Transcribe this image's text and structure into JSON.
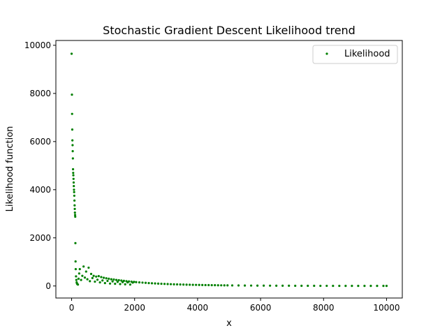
{
  "chart_data": {
    "type": "scatter",
    "title": "Stochastic Gradient Descent Likelihood trend",
    "xlabel": "x",
    "ylabel": "Likelihood function",
    "xlim": [
      -500,
      10500
    ],
    "ylim": [
      -500,
      10200
    ],
    "x_ticks": [
      0,
      2000,
      4000,
      6000,
      8000,
      10000
    ],
    "y_ticks": [
      0,
      2000,
      4000,
      6000,
      8000,
      10000
    ],
    "x_tick_labels": [
      "0",
      "2000",
      "4000",
      "6000",
      "8000",
      "10000"
    ],
    "y_tick_labels": [
      "0",
      "2000",
      "4000",
      "6000",
      "8000",
      "10000"
    ],
    "grid": false,
    "legend": {
      "position": "top-right",
      "entries": [
        "Likelihood"
      ]
    },
    "series": [
      {
        "name": "Likelihood",
        "color": "#008000",
        "marker": "dot",
        "points": [
          [
            0,
            9650
          ],
          [
            10,
            7950
          ],
          [
            15,
            7150
          ],
          [
            20,
            6500
          ],
          [
            25,
            6050
          ],
          [
            30,
            5850
          ],
          [
            35,
            5600
          ],
          [
            40,
            5300
          ],
          [
            45,
            4850
          ],
          [
            50,
            4700
          ],
          [
            55,
            4600
          ],
          [
            60,
            4450
          ],
          [
            65,
            4300
          ],
          [
            70,
            4150
          ],
          [
            75,
            4000
          ],
          [
            80,
            3900
          ],
          [
            85,
            3750
          ],
          [
            90,
            3550
          ],
          [
            95,
            3350
          ],
          [
            100,
            3200
          ],
          [
            105,
            3050
          ],
          [
            110,
            2950
          ],
          [
            115,
            2880
          ],
          [
            120,
            1780
          ],
          [
            125,
            1020
          ],
          [
            130,
            700
          ],
          [
            140,
            400
          ],
          [
            150,
            250
          ],
          [
            160,
            150
          ],
          [
            170,
            100
          ],
          [
            180,
            80
          ],
          [
            200,
            60
          ],
          [
            220,
            300
          ],
          [
            240,
            520
          ],
          [
            260,
            700
          ],
          [
            300,
            250
          ],
          [
            340,
            420
          ],
          [
            380,
            810
          ],
          [
            420,
            350
          ],
          [
            460,
            600
          ],
          [
            500,
            280
          ],
          [
            540,
            760
          ],
          [
            580,
            200
          ],
          [
            620,
            500
          ],
          [
            660,
            330
          ],
          [
            700,
            420
          ],
          [
            740,
            180
          ],
          [
            780,
            390
          ],
          [
            820,
            260
          ],
          [
            860,
            410
          ],
          [
            900,
            150
          ],
          [
            940,
            370
          ],
          [
            980,
            230
          ],
          [
            1020,
            340
          ],
          [
            1060,
            120
          ],
          [
            1100,
            320
          ],
          [
            1140,
            210
          ],
          [
            1180,
            300
          ],
          [
            1220,
            100
          ],
          [
            1260,
            280
          ],
          [
            1300,
            190
          ],
          [
            1340,
            270
          ],
          [
            1380,
            90
          ],
          [
            1420,
            250
          ],
          [
            1460,
            170
          ],
          [
            1500,
            240
          ],
          [
            1540,
            80
          ],
          [
            1580,
            225
          ],
          [
            1620,
            160
          ],
          [
            1660,
            215
          ],
          [
            1700,
            70
          ],
          [
            1740,
            200
          ],
          [
            1780,
            150
          ],
          [
            1820,
            190
          ],
          [
            1860,
            60
          ],
          [
            1900,
            180
          ],
          [
            1940,
            140
          ],
          [
            1980,
            170
          ],
          [
            2050,
            160
          ],
          [
            2150,
            150
          ],
          [
            2250,
            140
          ],
          [
            2350,
            130
          ],
          [
            2450,
            120
          ],
          [
            2550,
            112
          ],
          [
            2650,
            105
          ],
          [
            2750,
            98
          ],
          [
            2850,
            92
          ],
          [
            2950,
            86
          ],
          [
            3050,
            80
          ],
          [
            3150,
            75
          ],
          [
            3250,
            70
          ],
          [
            3350,
            66
          ],
          [
            3450,
            62
          ],
          [
            3550,
            58
          ],
          [
            3650,
            55
          ],
          [
            3750,
            52
          ],
          [
            3850,
            49
          ],
          [
            3950,
            46
          ],
          [
            4050,
            43
          ],
          [
            4150,
            40
          ],
          [
            4250,
            38
          ],
          [
            4350,
            36
          ],
          [
            4450,
            34
          ],
          [
            4550,
            32
          ],
          [
            4650,
            30
          ],
          [
            4750,
            28
          ],
          [
            4850,
            26
          ],
          [
            4950,
            25
          ],
          [
            5100,
            23
          ],
          [
            5300,
            21
          ],
          [
            5500,
            19
          ],
          [
            5700,
            17
          ],
          [
            5900,
            15
          ],
          [
            6100,
            14
          ],
          [
            6300,
            13
          ],
          [
            6500,
            12
          ],
          [
            6700,
            11
          ],
          [
            6900,
            10
          ],
          [
            7100,
            9
          ],
          [
            7300,
            8
          ],
          [
            7500,
            7
          ],
          [
            7700,
            7
          ],
          [
            7900,
            6
          ],
          [
            8100,
            6
          ],
          [
            8300,
            5
          ],
          [
            8500,
            5
          ],
          [
            8700,
            4
          ],
          [
            8900,
            4
          ],
          [
            9100,
            4
          ],
          [
            9300,
            3
          ],
          [
            9500,
            3
          ],
          [
            9700,
            3
          ],
          [
            9900,
            3
          ],
          [
            10000,
            3
          ]
        ]
      }
    ]
  }
}
